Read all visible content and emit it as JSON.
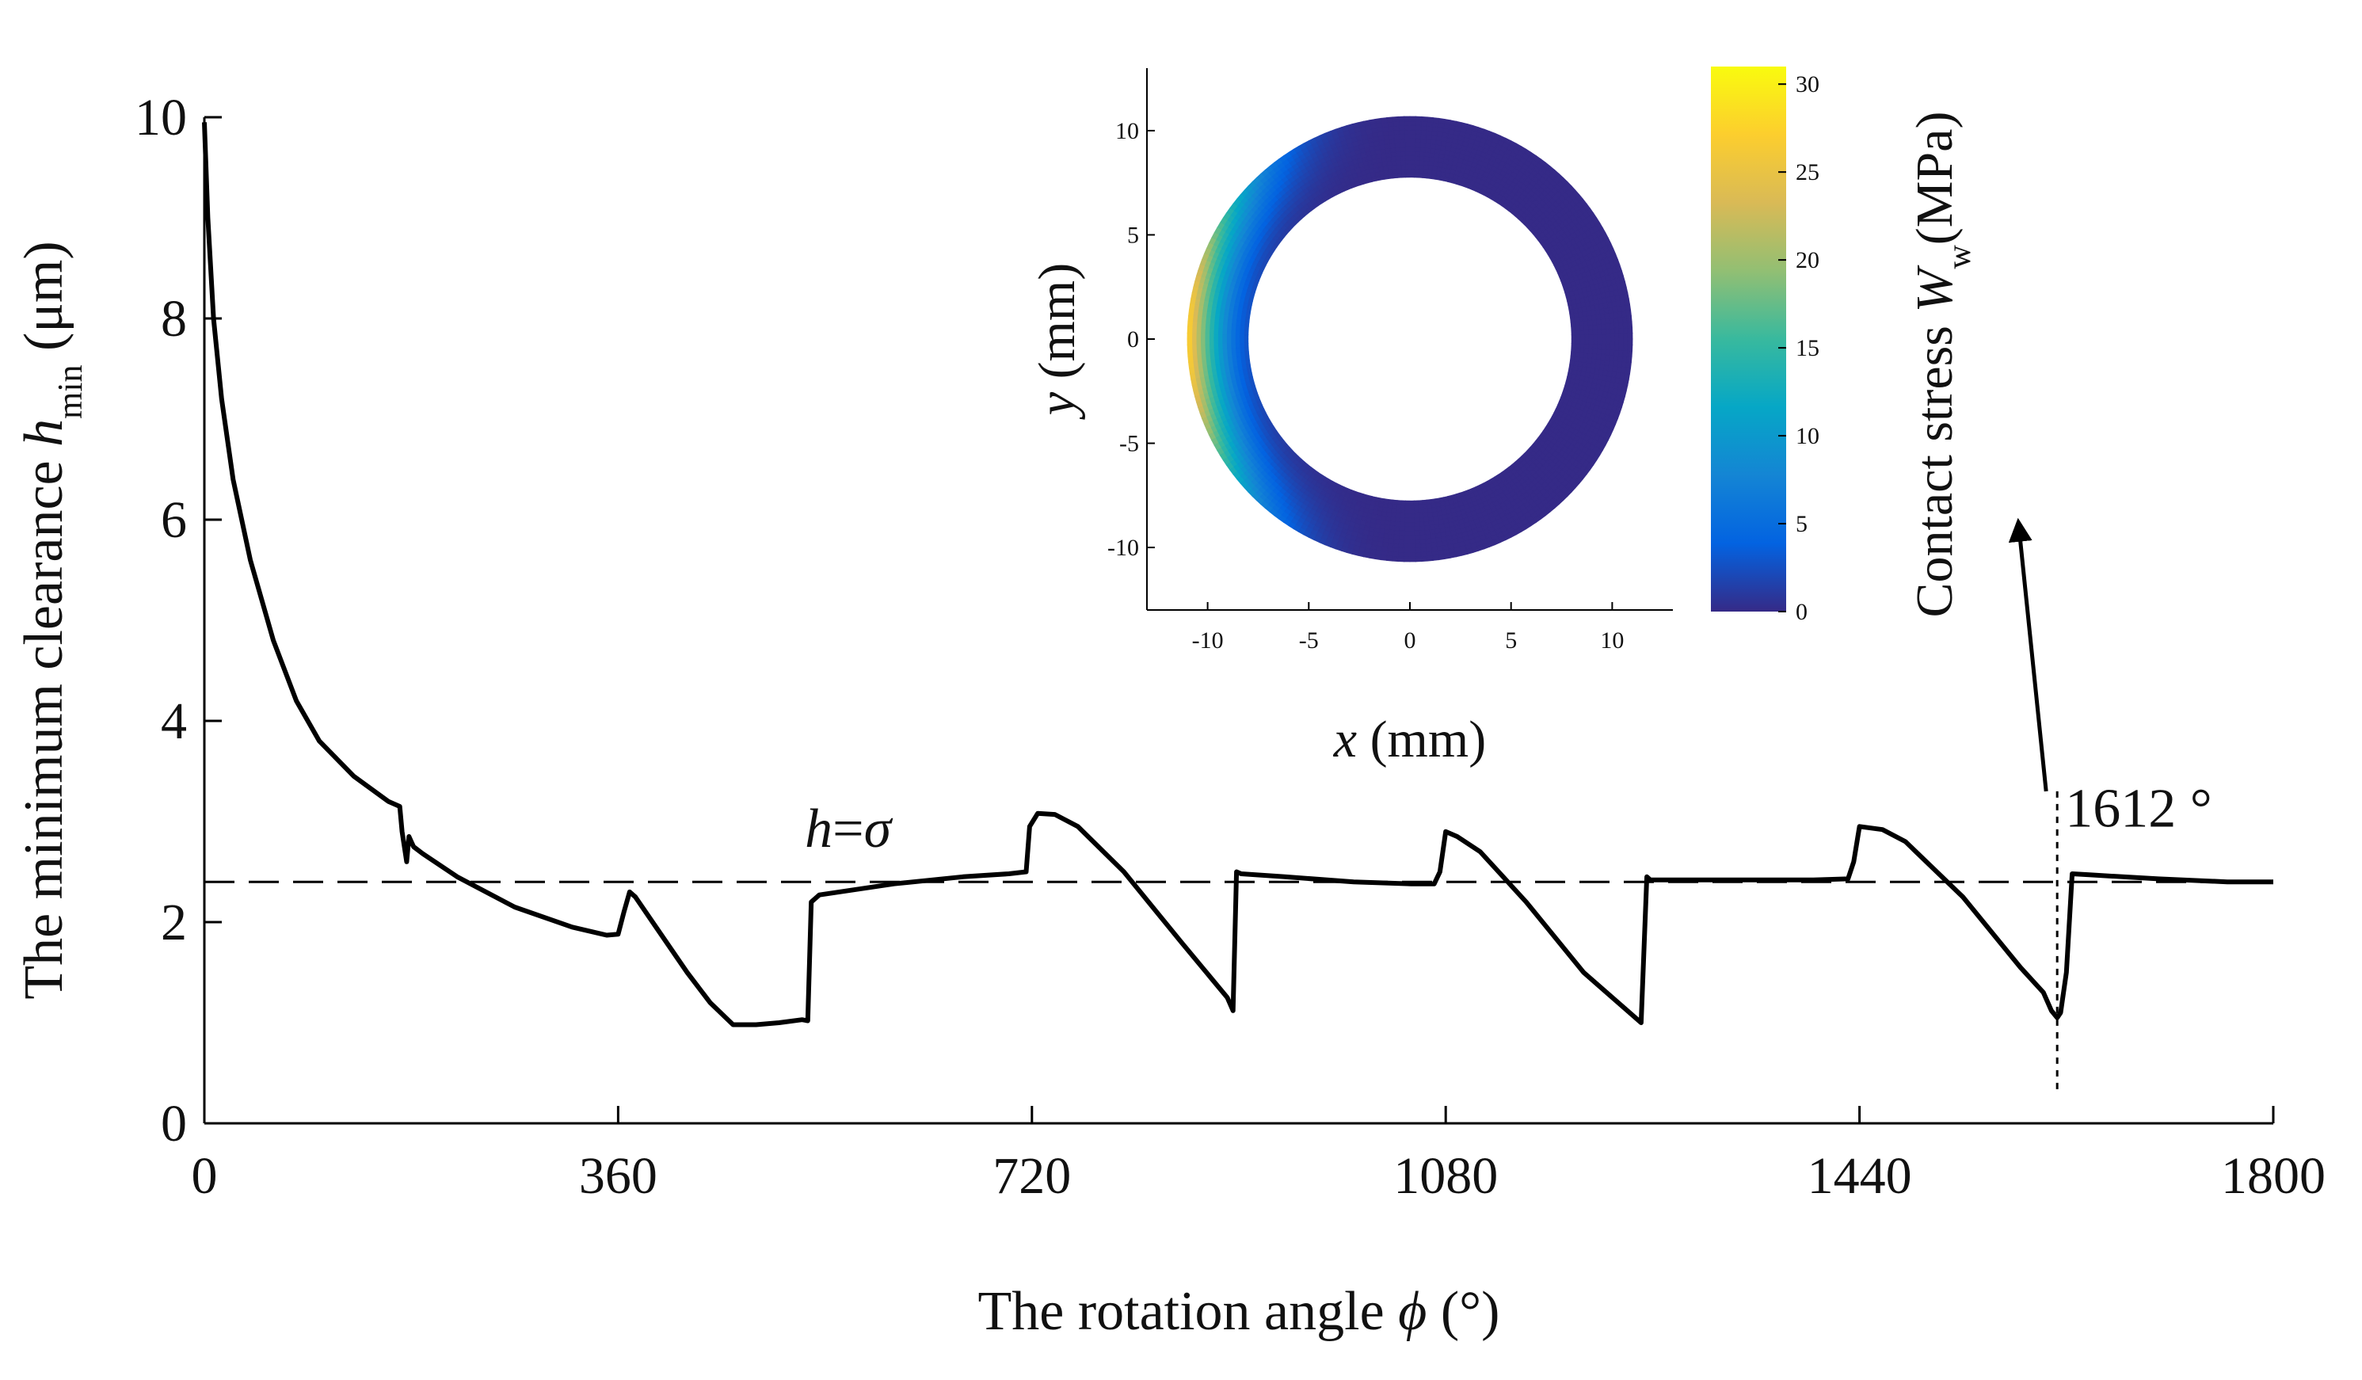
{
  "chart_data": [
    {
      "type": "line",
      "title": "",
      "xlabel": {
        "prefix": "The rotation angle ",
        "symbol": "ϕ",
        "suffix": " (°)"
      },
      "ylabel": {
        "prefix": "The minimum clearance ",
        "symbol": "h",
        "subscript": "min",
        "suffix": " (μm)"
      },
      "xlim": [
        0,
        1800
      ],
      "ylim": [
        0,
        10
      ],
      "xticks": [
        0,
        360,
        720,
        1080,
        1440,
        1800
      ],
      "xtick_labels": [
        "0",
        "360",
        "720",
        "1080",
        "1440",
        "1800"
      ],
      "yticks": [
        0,
        2,
        4,
        6,
        8,
        10
      ],
      "ytick_labels": [
        "0",
        "2",
        "4",
        "6",
        "8",
        "10"
      ],
      "series": [
        {
          "name": "h_min",
          "style": "solid",
          "color": "#000000",
          "x": [
            0,
            3,
            8,
            15,
            25,
            40,
            60,
            80,
            100,
            130,
            160,
            170,
            172,
            176,
            178,
            182,
            190,
            220,
            270,
            320,
            350,
            360,
            365,
            370,
            375,
            390,
            420,
            440,
            460,
            480,
            500,
            520,
            525,
            528,
            535,
            600,
            660,
            700,
            715,
            718,
            725,
            740,
            760,
            800,
            850,
            890,
            895,
            898,
            902,
            940,
            1000,
            1050,
            1070,
            1075,
            1080,
            1090,
            1110,
            1150,
            1200,
            1250,
            1255,
            1258,
            1262,
            1300,
            1350,
            1400,
            1430,
            1435,
            1440,
            1460,
            1480,
            1530,
            1580,
            1600,
            1607,
            1612,
            1615,
            1620,
            1625,
            1640,
            1700,
            1760,
            1800
          ],
          "y": [
            9.95,
            9.0,
            8.0,
            7.2,
            6.4,
            5.6,
            4.8,
            4.2,
            3.8,
            3.45,
            3.2,
            3.15,
            2.9,
            2.6,
            2.85,
            2.75,
            2.68,
            2.45,
            2.15,
            1.95,
            1.87,
            1.88,
            2.1,
            2.3,
            2.25,
            2.0,
            1.5,
            1.2,
            0.98,
            0.98,
            1.0,
            1.03,
            1.02,
            2.2,
            2.27,
            2.38,
            2.45,
            2.48,
            2.5,
            2.95,
            3.08,
            3.07,
            2.95,
            2.5,
            1.8,
            1.25,
            1.12,
            2.5,
            2.48,
            2.45,
            2.4,
            2.38,
            2.38,
            2.5,
            2.9,
            2.85,
            2.7,
            2.2,
            1.5,
            1.0,
            2.45,
            2.42,
            2.42,
            2.42,
            2.42,
            2.42,
            2.43,
            2.6,
            2.95,
            2.92,
            2.8,
            2.25,
            1.55,
            1.3,
            1.12,
            1.05,
            1.1,
            1.5,
            2.48,
            2.47,
            2.43,
            2.4,
            2.4
          ]
        },
        {
          "name": "h=σ",
          "style": "dashed",
          "color": "#000000",
          "x": [
            0,
            1800
          ],
          "y": [
            2.4,
            2.4
          ]
        }
      ],
      "annotations": [
        {
          "label": {
            "italic": "h",
            "text": "=",
            "symbol": "σ"
          }
        },
        {
          "text": "1612 °",
          "x": 1612
        }
      ]
    },
    {
      "type": "heatmap",
      "title": "",
      "xlabel": {
        "symbol": "x",
        "suffix": " (mm)"
      },
      "ylabel": {
        "symbol": "y",
        "suffix": " (mm)"
      },
      "xlim": [
        -13,
        13
      ],
      "ylim": [
        -13,
        13
      ],
      "xticks": [
        -10,
        -5,
        0,
        5,
        10
      ],
      "xtick_labels": [
        "-10",
        "-5",
        "0",
        "5",
        "10"
      ],
      "yticks": [
        -10,
        -5,
        0,
        5,
        10
      ],
      "ytick_labels": [
        "-10",
        "-5",
        "0",
        "5",
        "10"
      ],
      "ring": {
        "inner_radius": 8,
        "outer_radius": 11,
        "max_stress_MPa": 28,
        "max_stress_angle_deg": 180,
        "hot_zone_angle_start_deg": 90,
        "hot_zone_angle_end_deg": 270
      },
      "colorbar": {
        "label": {
          "prefix": "Contact stress ",
          "symbol": "W",
          "subscript": "w",
          "suffix": "(MPa)"
        },
        "range": [
          0,
          31
        ],
        "ticks": [
          0,
          5,
          10,
          15,
          20,
          25,
          30
        ],
        "tick_labels": [
          "0",
          "5",
          "10",
          "15",
          "20",
          "25",
          "30"
        ],
        "colors": [
          "#352a87",
          "#0363e1",
          "#1485d4",
          "#06a7c6",
          "#38b99e",
          "#92bf73",
          "#d9ba56",
          "#fcce2e",
          "#f9fb0e"
        ]
      }
    }
  ]
}
